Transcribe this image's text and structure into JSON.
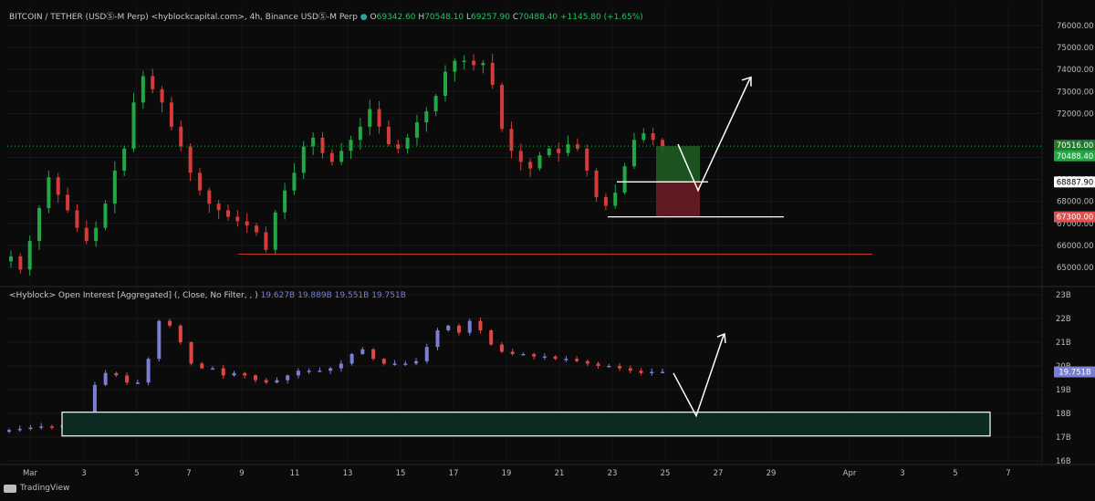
{
  "price_header": {
    "symbol": "BITCOIN / TETHER (USDⓈ-M Perp) <hyblockcapital.com>, 4h, Binance USDⓈ-M Perp",
    "open_label": "O",
    "open": "69342.60",
    "high_label": "H",
    "high": "70548.10",
    "low_label": "L",
    "low": "69257.90",
    "close_label": "C",
    "close": "70488.40",
    "change": "+1145.80 (+1.65%)"
  },
  "oi_header": {
    "title": "<Hyblock> Open Interest [Aggregated] (, Close, No Filter, , )",
    "v1": "19.627B",
    "v2": "19.889B",
    "v3": "19.551B",
    "v4": "19.751B"
  },
  "colors": {
    "up": "#22a745",
    "down": "#d63a3a",
    "oi_up": "#7b7fd4",
    "oi_down": "#e04646",
    "grid": "#1a1a1a",
    "target": "#1f5f23",
    "stop": "#6f1f26",
    "zone_fill": "#0d2a22"
  },
  "footer": {
    "brand": "TradingView"
  },
  "chart_data": [
    {
      "type": "candlestick",
      "title": "BITCOIN / TETHER (USDⓈ-M Perp), 4h",
      "x_ticks": [
        "Mar",
        "3",
        "5",
        "7",
        "9",
        "11",
        "13",
        "15",
        "17",
        "19",
        "21",
        "23",
        "25",
        "27",
        "29",
        "Apr",
        "3",
        "5",
        "7"
      ],
      "y_ticks": [
        "76000.00",
        "75000.00",
        "74000.00",
        "73000.00",
        "72000.00",
        "70000.00",
        "69000.00",
        "68000.00",
        "67000.00",
        "66000.00",
        "65000.00"
      ],
      "ylim": [
        64300,
        76800
      ],
      "price_labels": {
        "target": "70516.00",
        "last": "70488.40",
        "entry": "68887.90",
        "stop": "67300.00"
      },
      "closes_approx": [
        65500,
        64900,
        66200,
        67700,
        69100,
        68300,
        67600,
        66800,
        66200,
        66800,
        67900,
        69400,
        70400,
        72500,
        73700,
        73100,
        72500,
        71400,
        70500,
        69300,
        68500,
        67900,
        67600,
        67300,
        67100,
        66900,
        66600,
        65800,
        67500,
        68500,
        69300,
        70500,
        70900,
        70200,
        69800,
        70300,
        70800,
        71400,
        72200,
        71400,
        70600,
        70400,
        70900,
        71600,
        72100,
        72800,
        73900,
        74400,
        74400,
        74200,
        74300,
        73300,
        71300,
        70300,
        69800,
        69500,
        70100,
        70400,
        70200,
        70600,
        70400,
        69400,
        68200,
        67800,
        68400,
        69600,
        70800,
        71100,
        70800,
        70500
      ]
    },
    {
      "type": "candlestick",
      "title": "<Hyblock> Open Interest [Aggregated]",
      "y_ticks": [
        "23B",
        "22B",
        "21B",
        "20B",
        "19B",
        "18B",
        "17B",
        "16B"
      ],
      "ylim": [
        15.9,
        23.3
      ],
      "value_label": "19.751B",
      "closes_approx": [
        17.3,
        17.35,
        17.4,
        17.45,
        17.4,
        17.5,
        17.3,
        17.2,
        19.2,
        19.7,
        19.6,
        19.3,
        19.3,
        20.3,
        21.9,
        21.7,
        21.0,
        20.1,
        19.9,
        19.9,
        19.6,
        19.7,
        19.6,
        19.4,
        19.3,
        19.4,
        19.6,
        19.8,
        19.8,
        19.8,
        19.9,
        20.1,
        20.5,
        20.7,
        20.3,
        20.1,
        20.1,
        20.1,
        20.2,
        20.8,
        21.5,
        21.7,
        21.4,
        21.9,
        21.5,
        20.9,
        20.6,
        20.5,
        20.5,
        20.4,
        20.4,
        20.3,
        20.3,
        20.2,
        20.1,
        20.0,
        20.0,
        19.9,
        19.8,
        19.7,
        19.75,
        19.75
      ]
    }
  ]
}
